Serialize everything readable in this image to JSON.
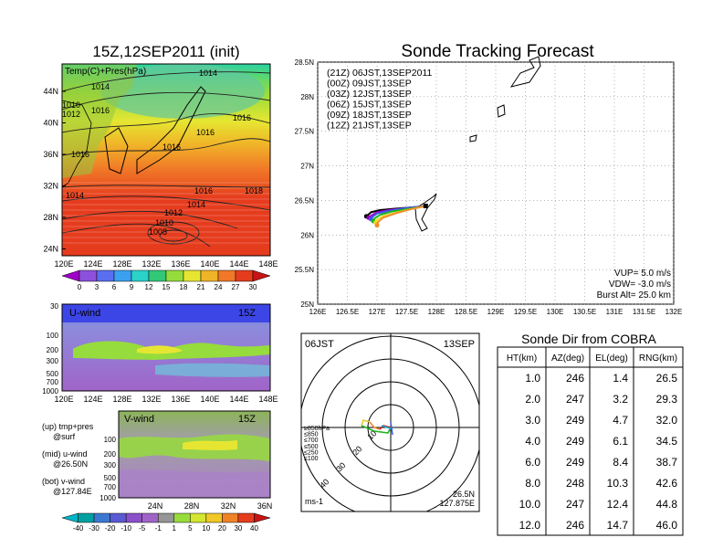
{
  "left": {
    "title": "15Z,12SEP2011 (init)",
    "map_label": "Temp(C)+Pres(hPa)",
    "lat_ticks": [
      "44N",
      "40N",
      "36N",
      "32N",
      "28N",
      "24N"
    ],
    "lon_ticks": [
      "120E",
      "124E",
      "128E",
      "132E",
      "136E",
      "140E",
      "144E",
      "148E"
    ],
    "isobar_labels": [
      "1014",
      "1014",
      "1010",
      "1012",
      "1016",
      "1016",
      "1016",
      "1016",
      "1016",
      "1014",
      "1016",
      "1018",
      "1014",
      "1012",
      "1010",
      "1008"
    ],
    "colorbar_labels": [
      "0",
      "3",
      "6",
      "9",
      "12",
      "15",
      "18",
      "21",
      "24",
      "27",
      "30"
    ],
    "colorbar_colors": [
      "#a000c8",
      "#8c50dc",
      "#5a6ef0",
      "#3ca0f0",
      "#2ad2c8",
      "#32c878",
      "#96dc3c",
      "#e6e632",
      "#f0b428",
      "#f07828",
      "#e63c1e",
      "#c81414"
    ]
  },
  "uwind": {
    "label": "U-wind",
    "time": "15Z",
    "y_ticks": [
      "30",
      "100",
      "200",
      "300",
      "500",
      "700",
      "1000"
    ],
    "x_ticks": [
      "120E",
      "124E",
      "128E",
      "132E",
      "136E",
      "140E",
      "144E",
      "148E"
    ]
  },
  "vwind": {
    "label": "V-wind",
    "time": "15Z",
    "y_ticks": [
      "100",
      "200",
      "300",
      "500",
      "700",
      "1000"
    ],
    "x_ticks": [
      "24N",
      "28N",
      "32N",
      "36N"
    ]
  },
  "notes": [
    "(up) tmp+pres",
    "@surf",
    "(mid) u-wind",
    "@26.50N",
    "(bot) v-wind",
    "@127.84E"
  ],
  "wind_colorbar": {
    "labels": [
      "-40",
      "-30",
      "-20",
      "-10",
      "-5",
      "-1",
      "1",
      "5",
      "10",
      "20",
      "30",
      "40"
    ],
    "colors": [
      "#00b4c8",
      "#00a0a0",
      "#3c78d2",
      "#5a5ad2",
      "#8c50c8",
      "#a064c8",
      "#969696",
      "#96dc3c",
      "#d2e632",
      "#f0c828",
      "#f08228",
      "#e63c1e",
      "#c81414"
    ]
  },
  "track": {
    "title": "Sonde Tracking Forecast",
    "lat_ticks": [
      "28.5N",
      "28N",
      "27.5N",
      "27N",
      "26.5N",
      "26N",
      "25.5N",
      "25N"
    ],
    "lon_ticks": [
      "126E",
      "126.5E",
      "127E",
      "127.5E",
      "128E",
      "128.5E",
      "129E",
      "129.5E",
      "130E",
      "130.5E",
      "131E",
      "131.5E",
      "132E"
    ],
    "legend": [
      {
        "text": "(21Z)  06JST,13SEP2011",
        "color": "#000000"
      },
      {
        "text": "(00Z)  09JST,13SEP",
        "color": "#a000c8"
      },
      {
        "text": "(03Z)  12JST,13SEP",
        "color": "#3c5af0"
      },
      {
        "text": "(06Z)  15JST,13SEP",
        "color": "#1eb41e"
      },
      {
        "text": "(09Z)  18JST,13SEP",
        "color": "#f0dc28"
      },
      {
        "text": "(12Z)  21JST,13SEP",
        "color": "#f08c28"
      }
    ],
    "params": [
      "VUP=  5.0  m/s",
      "VDW=  -3.0  m/s",
      "Burst Alt=  25.0  km"
    ],
    "chart_data": {
      "type": "line",
      "xlabel": "",
      "ylabel": "",
      "xlim": [
        126,
        132
      ],
      "ylim": [
        25,
        28.5
      ],
      "series": [
        {
          "name": "(21Z)  06JST,13SEP2011",
          "color": "#000000",
          "x": [
            127.82,
            127.6,
            127.3,
            127.05,
            126.9,
            126.85,
            126.82
          ],
          "y": [
            26.42,
            26.4,
            26.38,
            26.36,
            26.33,
            26.29,
            26.27
          ]
        },
        {
          "name": "(00Z)  09JST,13SEP",
          "color": "#a000c8",
          "x": [
            127.82,
            127.5,
            127.2,
            127.0,
            126.9,
            126.86
          ],
          "y": [
            26.42,
            26.39,
            26.36,
            26.33,
            26.28,
            26.25
          ]
        },
        {
          "name": "(03Z)  12JST,13SEP",
          "color": "#3c5af0",
          "x": [
            127.82,
            127.5,
            127.2,
            127.0,
            126.92,
            126.9
          ],
          "y": [
            26.42,
            26.39,
            26.35,
            26.31,
            26.26,
            26.23
          ]
        },
        {
          "name": "(06Z)  15JST,13SEP",
          "color": "#1eb41e",
          "x": [
            127.82,
            127.55,
            127.25,
            127.05,
            126.96,
            126.94
          ],
          "y": [
            26.42,
            26.38,
            26.34,
            26.29,
            26.24,
            26.2
          ]
        },
        {
          "name": "(09Z)  18JST,13SEP",
          "color": "#f0dc28",
          "x": [
            127.82,
            127.55,
            127.3,
            127.1,
            127.0,
            126.98
          ],
          "y": [
            26.42,
            26.37,
            26.32,
            26.27,
            26.22,
            26.18
          ]
        },
        {
          "name": "(12Z)  21JST,13SEP",
          "color": "#f08c28",
          "x": [
            127.82,
            127.55,
            127.3,
            127.1,
            127.02,
            127.0
          ],
          "y": [
            26.42,
            26.37,
            26.31,
            26.25,
            26.19,
            26.14
          ]
        }
      ]
    }
  },
  "polar": {
    "time": "06JST",
    "date": "13SEP",
    "unit": "ms-1",
    "lat": "26.5N",
    "lon": "127.875E",
    "ring_labels": [
      "10",
      "20",
      "30",
      "40"
    ],
    "levels": [
      {
        "text": "≥850hPa",
        "color": "#c81414"
      },
      {
        "text": "≤850",
        "color": "#f08228"
      },
      {
        "text": "≤700",
        "color": "#e6c828"
      },
      {
        "text": "≤500",
        "color": "#1eb41e"
      },
      {
        "text": "≤250",
        "color": "#1eb4dc"
      },
      {
        "text": "≤100",
        "color": "#3c5af0"
      }
    ]
  },
  "cobra": {
    "title": "Sonde Dir from COBRA",
    "headers": [
      "HT(km)",
      "AZ(deg)",
      "EL(deg)",
      "RNG(km)"
    ],
    "rows": [
      [
        "1.0",
        "246",
        "1.4",
        "26.5"
      ],
      [
        "2.0",
        "247",
        "3.2",
        "29.3"
      ],
      [
        "3.0",
        "249",
        "4.7",
        "32.0"
      ],
      [
        "4.0",
        "249",
        "6.1",
        "34.5"
      ],
      [
        "6.0",
        "249",
        "8.4",
        "38.7"
      ],
      [
        "8.0",
        "248",
        "10.3",
        "42.6"
      ],
      [
        "10.0",
        "247",
        "12.4",
        "44.8"
      ],
      [
        "12.0",
        "246",
        "14.7",
        "46.0"
      ]
    ]
  }
}
